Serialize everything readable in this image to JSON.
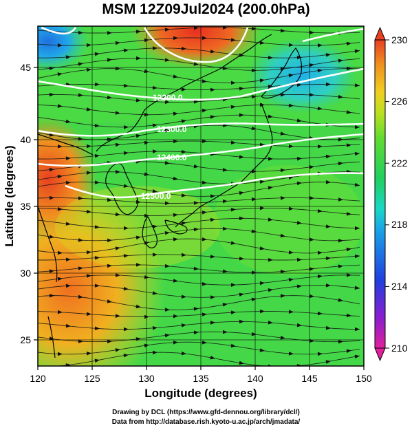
{
  "title": "MSM 12Z09Jul2024 (200.0hPa)",
  "map": {
    "lon_range": [
      120,
      150
    ],
    "lat_range": [
      22.5,
      48
    ],
    "lon_ticks": [
      120,
      125,
      130,
      135,
      140,
      145,
      150
    ],
    "lat_ticks": [
      25,
      30,
      35,
      40,
      45
    ],
    "xlabel": "Longitude (degrees)",
    "ylabel": "Latitude  (degrees)",
    "contours": [
      {
        "label": "12200.0",
        "color": "#ffffff"
      },
      {
        "label": "12300.0",
        "color": "#ffffff"
      },
      {
        "label": "12400.0",
        "color": "#ffffff"
      },
      {
        "label": "12500.0",
        "color": "#ffffff"
      }
    ],
    "field": "temperature shading with wind streamlines"
  },
  "colorbar": {
    "min": 210,
    "max": 230,
    "tick_labels": [
      "230",
      "226",
      "222",
      "218",
      "214",
      "210"
    ],
    "colors": [
      "#e0209a",
      "#8a1ed0",
      "#2040e0",
      "#1aa0e8",
      "#18d8c8",
      "#20d060",
      "#60dc30",
      "#b8e020",
      "#f0d020",
      "#f09020",
      "#e84020"
    ]
  },
  "credits": {
    "line1": "Drawing by DCL (https://www.gfd-dennou.org/library/dcl/)",
    "line2": "Data from http://database.rish.kyoto-u.ac.jp/arch/jmadata/"
  }
}
